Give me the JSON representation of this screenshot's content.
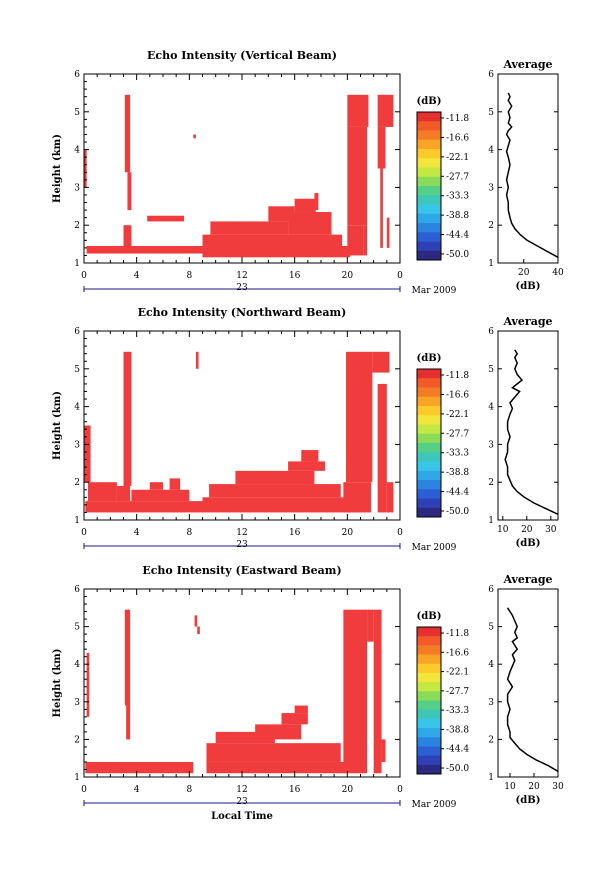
{
  "chart_data": [
    {
      "type": "heatmap",
      "title": "Echo Intensity (Vertical Beam)",
      "ylabel": "Height (km)",
      "xticks": [
        "0",
        "4",
        "8",
        "12",
        "16",
        "20",
        "0"
      ],
      "xlim": [
        0,
        24
      ],
      "ylim": [
        1,
        6
      ],
      "yticks": [
        "1",
        "2",
        "3",
        "4",
        "5",
        "6"
      ],
      "day_label": "23",
      "date_label": "Mar 2009",
      "color": "#f03c3c",
      "cells": [
        [
          0.2,
          9.2,
          1.25,
          1.45
        ],
        [
          9.0,
          20.2,
          1.15,
          1.45
        ],
        [
          9.0,
          19.6,
          1.45,
          1.75
        ],
        [
          9.6,
          15.5,
          1.75,
          2.1
        ],
        [
          15.5,
          18.8,
          1.75,
          2.35
        ],
        [
          14.0,
          16.0,
          2.1,
          2.5
        ],
        [
          16.0,
          17.6,
          2.35,
          2.7
        ],
        [
          17.5,
          17.8,
          2.4,
          2.85
        ],
        [
          20.0,
          21.2,
          1.2,
          2.0
        ],
        [
          20.0,
          21.5,
          2.0,
          4.6
        ],
        [
          20.0,
          21.6,
          4.6,
          5.45
        ],
        [
          20.5,
          21.0,
          3.5,
          4.0
        ],
        [
          21.2,
          21.5,
          1.2,
          2.0
        ],
        [
          22.3,
          23.5,
          4.6,
          5.45
        ],
        [
          22.3,
          22.9,
          3.5,
          4.6
        ],
        [
          22.5,
          22.7,
          1.4,
          3.5
        ],
        [
          23.0,
          23.2,
          1.4,
          2.2
        ],
        [
          3.1,
          3.5,
          3.4,
          5.45
        ],
        [
          3.3,
          3.6,
          2.4,
          3.4
        ],
        [
          4.8,
          7.6,
          2.1,
          2.25
        ],
        [
          8.3,
          8.5,
          4.3,
          4.4
        ],
        [
          0,
          0.2,
          3.0,
          4.0
        ],
        [
          3.0,
          3.6,
          1.45,
          2.0
        ]
      ],
      "colorbar": {
        "title": "(dB)",
        "labels": [
          "-11.8",
          "-16.6",
          "-22.1",
          "-27.7",
          "-33.3",
          "-38.8",
          "-44.4",
          "-50.0"
        ],
        "colors": [
          "#e53030",
          "#f25a2a",
          "#f57c26",
          "#f8a424",
          "#fdca29",
          "#f2e63a",
          "#c4e842",
          "#8adc58",
          "#53d086",
          "#3ec6b8",
          "#38c6e8",
          "#30a8e8",
          "#2c84e0",
          "#2a60d4",
          "#2e40b8",
          "#2c2a80"
        ]
      },
      "average": {
        "title": "Average",
        "xlabel": "(dB)",
        "xlim": [
          5,
          40
        ],
        "xticks": [
          "20",
          "40"
        ],
        "ylim": [
          1,
          6
        ],
        "yticks": [
          "1",
          "2",
          "3",
          "4",
          "5",
          "6"
        ],
        "x": [
          40,
          34,
          28,
          22,
          18,
          15,
          13,
          12,
          11,
          11,
          10,
          11,
          10,
          11,
          12,
          11,
          10,
          11,
          12,
          10,
          11,
          13,
          11,
          12,
          11,
          13,
          11,
          12,
          11
        ],
        "y": [
          1.15,
          1.3,
          1.45,
          1.6,
          1.75,
          1.9,
          2.05,
          2.2,
          2.4,
          2.6,
          2.8,
          3.0,
          3.2,
          3.4,
          3.6,
          3.8,
          3.95,
          4.1,
          4.25,
          4.4,
          4.5,
          4.6,
          4.7,
          4.85,
          5.0,
          5.15,
          5.3,
          5.4,
          5.5
        ]
      }
    },
    {
      "type": "heatmap",
      "title": "Echo Intensity (Northward Beam)",
      "ylabel": "Height (km)",
      "xticks": [
        "0",
        "4",
        "8",
        "12",
        "16",
        "20",
        "0"
      ],
      "xlim": [
        0,
        24
      ],
      "ylim": [
        1,
        6
      ],
      "yticks": [
        "1",
        "2",
        "3",
        "4",
        "5",
        "6"
      ],
      "day_label": "23",
      "date_label": "Mar 2009",
      "color": "#f03c3c",
      "cells": [
        [
          0.1,
          9.0,
          1.2,
          1.5
        ],
        [
          0.3,
          2.5,
          1.5,
          2.0
        ],
        [
          2.5,
          3.5,
          1.5,
          1.9
        ],
        [
          3.0,
          3.6,
          1.9,
          5.45
        ],
        [
          3.6,
          8.0,
          1.5,
          1.8
        ],
        [
          9.0,
          21.0,
          1.2,
          1.6
        ],
        [
          9.5,
          19.5,
          1.6,
          1.95
        ],
        [
          11.5,
          17.5,
          1.95,
          2.3
        ],
        [
          15.5,
          18.3,
          2.3,
          2.55
        ],
        [
          16.5,
          17.8,
          2.55,
          2.85
        ],
        [
          19.7,
          21.8,
          1.2,
          2.0
        ],
        [
          19.9,
          21.9,
          2.0,
          5.45
        ],
        [
          21.9,
          23.2,
          4.9,
          5.45
        ],
        [
          22.3,
          23.0,
          1.2,
          4.6
        ],
        [
          23.0,
          23.5,
          1.2,
          2.0
        ],
        [
          0,
          0.5,
          2.0,
          3.5
        ],
        [
          8.5,
          8.7,
          5.0,
          5.45
        ],
        [
          6.5,
          7.3,
          1.8,
          2.1
        ],
        [
          5.0,
          6.0,
          1.8,
          2.0
        ]
      ],
      "colorbar": {
        "title": "(dB)",
        "labels": [
          "-11.8",
          "-16.6",
          "-22.1",
          "-27.7",
          "-33.3",
          "-38.8",
          "-44.4",
          "-50.0"
        ],
        "colors": [
          "#e53030",
          "#f25a2a",
          "#f57c26",
          "#f8a424",
          "#fdca29",
          "#f2e63a",
          "#c4e842",
          "#8adc58",
          "#53d086",
          "#3ec6b8",
          "#38c6e8",
          "#30a8e8",
          "#2c84e0",
          "#2a60d4",
          "#2e40b8",
          "#2c2a80"
        ]
      },
      "average": {
        "title": "Average",
        "xlabel": "(dB)",
        "xlim": [
          8,
          33
        ],
        "xticks": [
          "10",
          "20",
          "30"
        ],
        "ylim": [
          1,
          6
        ],
        "yticks": [
          "1",
          "2",
          "3",
          "4",
          "5",
          "6"
        ],
        "x": [
          33,
          28,
          23,
          19,
          16,
          14,
          13,
          12,
          12,
          11,
          12,
          12,
          13,
          12,
          12,
          13,
          14,
          13,
          15,
          17,
          14,
          16,
          18,
          16,
          15,
          16,
          15,
          16,
          15
        ],
        "y": [
          1.15,
          1.3,
          1.45,
          1.6,
          1.75,
          1.9,
          2.05,
          2.2,
          2.4,
          2.6,
          2.8,
          3.0,
          3.2,
          3.4,
          3.6,
          3.8,
          3.95,
          4.1,
          4.25,
          4.4,
          4.5,
          4.6,
          4.7,
          4.85,
          5.0,
          5.15,
          5.3,
          5.4,
          5.5
        ]
      }
    },
    {
      "type": "heatmap",
      "title": "Echo Intensity (Eastward Beam)",
      "ylabel": "Height (km)",
      "xticks": [
        "0",
        "4",
        "8",
        "12",
        "16",
        "20",
        "0"
      ],
      "xlim": [
        0,
        24
      ],
      "ylim": [
        1,
        6
      ],
      "yticks": [
        "1",
        "2",
        "3",
        "4",
        "5",
        "6"
      ],
      "day_label": "23",
      "date_label": "Mar 2009",
      "xlabel": "Local Time",
      "color": "#f03c3c",
      "cells": [
        [
          0.1,
          8.3,
          1.1,
          1.4
        ],
        [
          9.3,
          20.0,
          1.1,
          1.4
        ],
        [
          9.3,
          19.5,
          1.4,
          1.9
        ],
        [
          10.0,
          14.5,
          1.9,
          2.2
        ],
        [
          13.0,
          16.5,
          2.0,
          2.4
        ],
        [
          15.0,
          17.0,
          2.4,
          2.7
        ],
        [
          16.0,
          17.0,
          2.7,
          2.9
        ],
        [
          19.7,
          21.5,
          1.1,
          5.45
        ],
        [
          21.5,
          22.0,
          4.6,
          5.45
        ],
        [
          22.0,
          22.6,
          1.1,
          5.45
        ],
        [
          22.6,
          22.9,
          1.4,
          2.0
        ],
        [
          3.1,
          3.5,
          2.9,
          5.45
        ],
        [
          3.2,
          3.5,
          2.0,
          2.9
        ],
        [
          8.4,
          8.6,
          5.0,
          5.3
        ],
        [
          8.6,
          8.8,
          4.8,
          5.0
        ],
        [
          0.2,
          0.4,
          2.6,
          4.3
        ]
      ],
      "colorbar": {
        "title": "(dB)",
        "labels": [
          "-11.8",
          "-16.6",
          "-22.1",
          "-27.7",
          "-33.3",
          "-38.8",
          "-44.4",
          "-50.0"
        ],
        "colors": [
          "#e53030",
          "#f25a2a",
          "#f57c26",
          "#f8a424",
          "#fdca29",
          "#f2e63a",
          "#c4e842",
          "#8adc58",
          "#53d086",
          "#3ec6b8",
          "#38c6e8",
          "#30a8e8",
          "#2c84e0",
          "#2a60d4",
          "#2e40b8",
          "#2c2a80"
        ]
      },
      "average": {
        "title": "Average",
        "xlabel": "(dB)",
        "xlim": [
          5,
          30
        ],
        "xticks": [
          "10",
          "20",
          "30"
        ],
        "ylim": [
          1,
          6
        ],
        "yticks": [
          "1",
          "2",
          "3",
          "4",
          "5",
          "6"
        ],
        "x": [
          30,
          26,
          21,
          17,
          14,
          12,
          10,
          10,
          9,
          9,
          10,
          9,
          9,
          11,
          9,
          10,
          11,
          12,
          11,
          13,
          12,
          11,
          13,
          12,
          13,
          12,
          11,
          10,
          9
        ],
        "y": [
          1.15,
          1.3,
          1.45,
          1.6,
          1.75,
          1.9,
          2.05,
          2.2,
          2.4,
          2.6,
          2.8,
          3.0,
          3.2,
          3.4,
          3.6,
          3.8,
          3.95,
          4.1,
          4.25,
          4.4,
          4.5,
          4.6,
          4.7,
          4.85,
          5.0,
          5.15,
          5.3,
          5.4,
          5.5
        ]
      }
    }
  ]
}
